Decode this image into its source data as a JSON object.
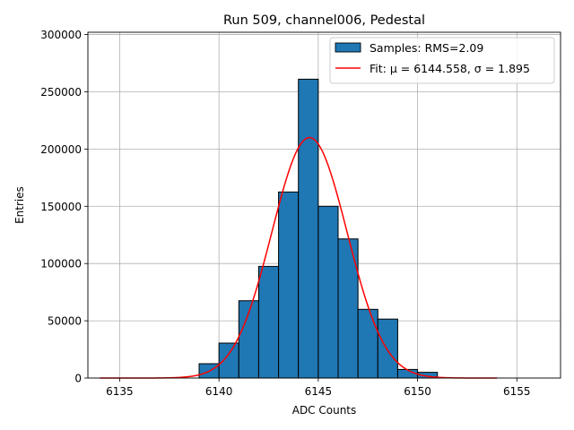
{
  "chart_data": {
    "type": "bar",
    "title": "Run 509, channel006, Pedestal",
    "xlabel": "ADC Counts",
    "ylabel": "Entries",
    "xlim": [
      6133.4,
      6157.2
    ],
    "ylim": [
      0,
      302000
    ],
    "xticks": [
      6135,
      6140,
      6145,
      6150,
      6155
    ],
    "yticks": [
      0,
      50000,
      100000,
      150000,
      200000,
      250000,
      300000
    ],
    "grid": true,
    "legend_position": "top-right",
    "histogram": {
      "name": "Samples: RMS=2.09",
      "color": "#1f77b4",
      "bin_edges": [
        6139,
        6140,
        6141,
        6142,
        6143,
        6144,
        6145,
        6146,
        6147,
        6148,
        6149,
        6150,
        6151
      ],
      "values": [
        12500,
        30500,
        67500,
        97500,
        162500,
        261000,
        150000,
        121500,
        60000,
        51500,
        7500,
        5000
      ]
    },
    "fit": {
      "name": "Fit: μ = 6144.558, σ = 1.895",
      "color": "#ff0000",
      "mu": 6144.558,
      "sigma": 1.895,
      "amplitude": 210000,
      "x_range": [
        6134,
        6154
      ]
    }
  }
}
